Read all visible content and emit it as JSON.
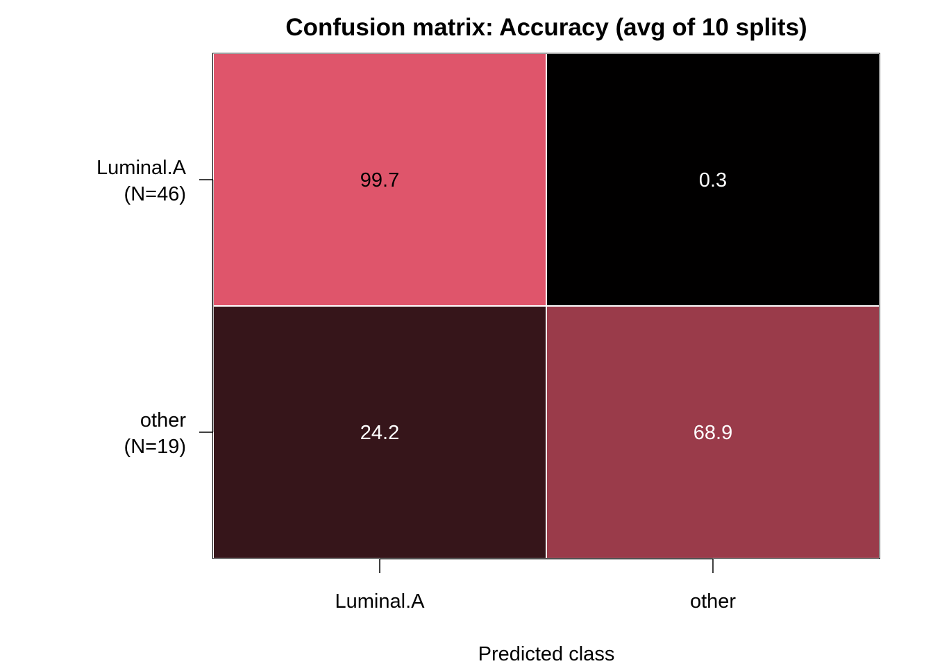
{
  "chart_data": {
    "type": "heatmap",
    "title": "Confusion matrix: Accuracy (avg of 10 splits)",
    "xlabel": "Predicted class",
    "ylabel": "",
    "x_categories": [
      "Luminal.A",
      "other"
    ],
    "y_categories": [
      {
        "name": "Luminal.A",
        "count_label": "(N=46)"
      },
      {
        "name": "other",
        "count_label": "(N=19)"
      }
    ],
    "values": [
      [
        99.7,
        0.3
      ],
      [
        24.2,
        68.9
      ]
    ],
    "value_labels": [
      [
        "99.7",
        "0.3"
      ],
      [
        "24.2",
        "68.9"
      ]
    ],
    "color_scale": {
      "low": "#000000",
      "high": "#E0556B"
    },
    "text_colors": [
      [
        "#000000",
        "#FFFFFF"
      ],
      [
        "#FFFFFF",
        "#FFFFFF"
      ]
    ],
    "grid": false,
    "legend": "none"
  }
}
